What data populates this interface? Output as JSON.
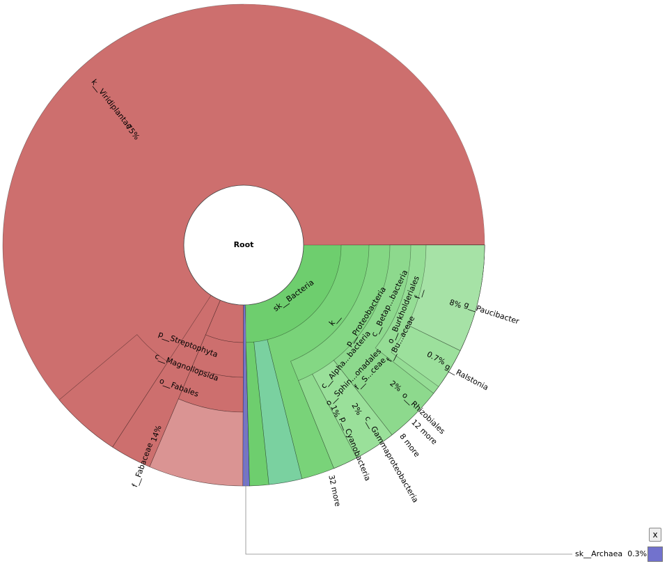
{
  "chart_data": {
    "type": "sunburst",
    "center_label": "Root",
    "colors": {
      "viridiplantae": "#cd6f6e",
      "fabaceae": "#da9493",
      "bacteria": "#6ece6e",
      "bacteria_light": "#a6e2a6",
      "cyanobacteria": "#7ad1a0",
      "archaea": "#7272cd"
    },
    "nodes": [
      {
        "name": "k__Viridiplantae",
        "percent": "75%",
        "children": [
          {
            "name": "p__Streptophyta",
            "children": [
              {
                "name": "c__Magnoliopsida",
                "children": [
                  {
                    "name": "o__Fabales",
                    "children": [
                      {
                        "name": "f__Fabaceae",
                        "percent": "14%"
                      }
                    ]
                  }
                ]
              }
            ]
          }
        ]
      },
      {
        "name": "sk__Bacteria",
        "children": [
          {
            "name": "k__",
            "children": [
              {
                "name": "p__Proteobacteria",
                "children": [
                  {
                    "name": "c__Betap...bacteria",
                    "children": [
                      {
                        "name": "o__Burkholderiales",
                        "children": [
                          {
                            "name": "f__",
                            "children": [
                              {
                                "name": "g__Paucibacter",
                                "percent": "8%"
                              }
                            ]
                          },
                          {
                            "name": "f__Bu...aceae",
                            "children": [
                              {
                                "name": "g__Ralstonia",
                                "percent": "0.7%"
                              }
                            ]
                          }
                        ]
                      }
                    ]
                  },
                  {
                    "name": "c__Alpha...bacteria",
                    "children": [
                      {
                        "name": "o__Rhizobiales",
                        "percent": "2%"
                      },
                      {
                        "name": "o__Sphin...onadales",
                        "children": [
                          {
                            "name": "f__S...ceae"
                          }
                        ]
                      },
                      {
                        "name": "12 more"
                      }
                    ]
                  },
                  {
                    "name": "c__Gammaproteobacteria",
                    "percent": "2%"
                  },
                  {
                    "name": "8 more"
                  }
                ]
              },
              {
                "name": "p__Cyanobacteria",
                "percent": "1%"
              },
              {
                "name": "32 more"
              }
            ]
          }
        ]
      },
      {
        "name": "sk__Archaea",
        "percent": "0.3%"
      }
    ]
  },
  "legend": {
    "label": "sk__Archaea",
    "percent": "0.3%",
    "close": "x"
  }
}
